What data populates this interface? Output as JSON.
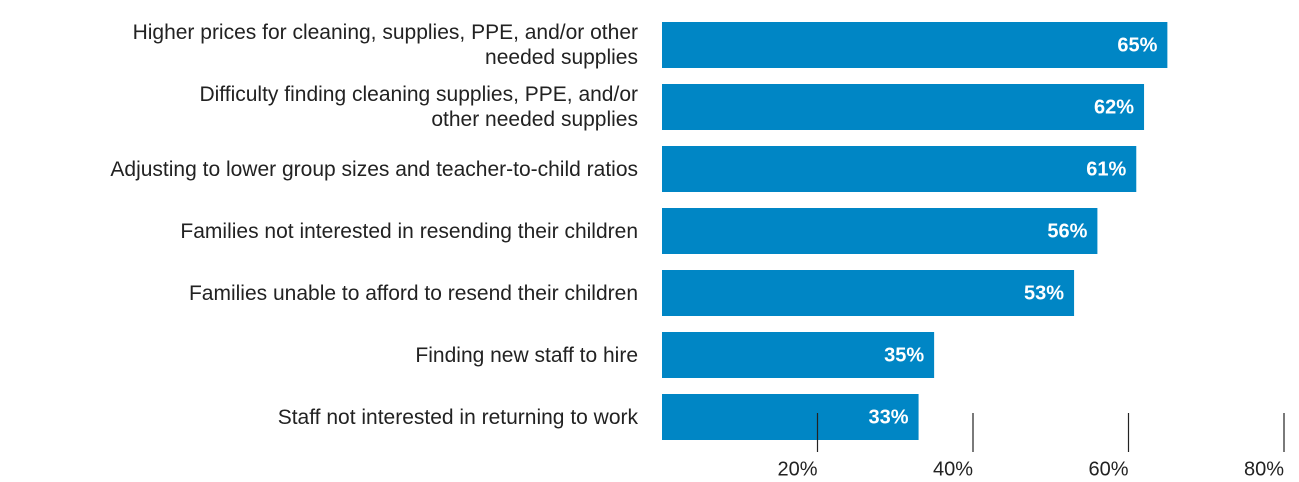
{
  "chart_data": {
    "type": "bar",
    "orientation": "horizontal",
    "categories": [
      "Higher prices for cleaning, supplies, PPE, and/or other\nneeded supplies",
      "Difficulty finding cleaning supplies, PPE, and/or\nother needed supplies",
      "Adjusting to lower group sizes and teacher-to-child ratios",
      "Families not interested in resending their children",
      "Families unable to afford to resend their children",
      "Finding new staff to hire",
      "Staff not interested in returning to work"
    ],
    "values": [
      65,
      62,
      61,
      56,
      53,
      35,
      33
    ],
    "value_labels": [
      "65%",
      "62%",
      "61%",
      "56%",
      "53%",
      "35%",
      "33%"
    ],
    "color": "#0086c5",
    "xlim": [
      0,
      80
    ],
    "xticks": [
      {
        "value": 20,
        "label": "20%"
      },
      {
        "value": 40,
        "label": "40%"
      },
      {
        "value": 60,
        "label": "60%"
      },
      {
        "value": 80,
        "label": "80%"
      }
    ]
  }
}
